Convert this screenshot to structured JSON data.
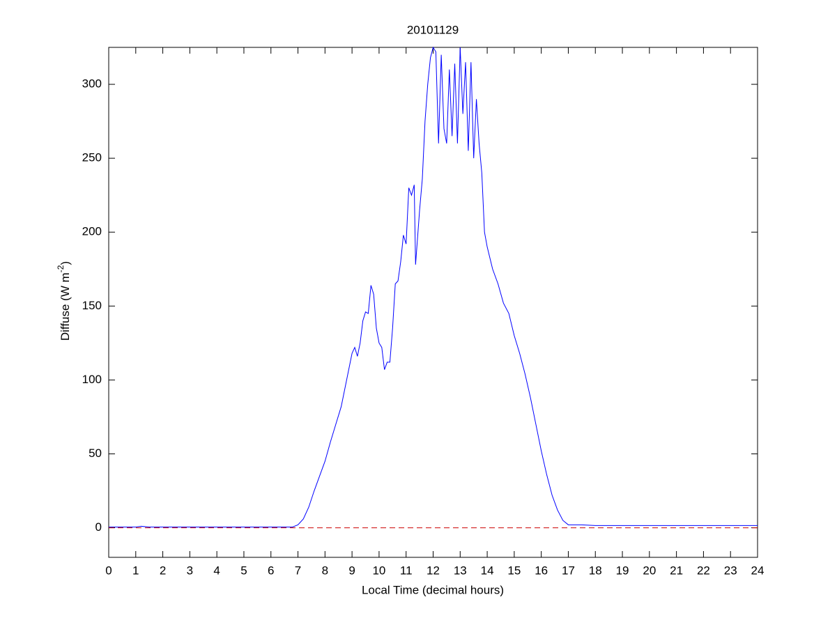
{
  "chart_data": {
    "type": "line",
    "title": "20101129",
    "xlabel": "Local Time (decimal hours)",
    "ylabel_parts": [
      "Diffuse (W m",
      "-2",
      ")"
    ],
    "x": [
      0,
      1,
      1.2,
      1.5,
      2,
      3,
      4,
      5,
      6,
      6.8,
      7,
      7.2,
      7.4,
      7.6,
      7.8,
      8,
      8.2,
      8.4,
      8.6,
      8.8,
      9,
      9.1,
      9.2,
      9.3,
      9.4,
      9.5,
      9.6,
      9.7,
      9.8,
      9.9,
      10,
      10.1,
      10.2,
      10.3,
      10.4,
      10.5,
      10.6,
      10.7,
      10.8,
      10.9,
      11,
      11.1,
      11.2,
      11.3,
      11.35,
      11.5,
      11.6,
      11.7,
      11.8,
      11.9,
      12,
      12.1,
      12.2,
      12.3,
      12.4,
      12.5,
      12.6,
      12.7,
      12.8,
      12.9,
      13,
      13.1,
      13.2,
      13.3,
      13.4,
      13.5,
      13.6,
      13.7,
      13.8,
      13.85,
      13.9,
      14,
      14.2,
      14.4,
      14.6,
      14.8,
      15,
      15.2,
      15.4,
      15.6,
      15.8,
      16,
      16.2,
      16.4,
      16.6,
      16.8,
      17,
      17.5,
      18,
      19,
      20,
      21,
      22,
      23,
      24
    ],
    "series": [
      {
        "color": "#0000ff",
        "values": [
          0.5,
          0.5,
          1,
          0.5,
          0.5,
          0.5,
          0.5,
          0.5,
          0.5,
          0.5,
          2,
          6,
          14,
          25,
          35,
          45,
          58,
          70,
          82,
          100,
          118,
          122,
          116,
          125,
          140,
          146,
          145,
          164,
          158,
          135,
          125,
          122,
          107,
          112,
          112,
          135,
          165,
          167,
          180,
          198,
          192,
          230,
          225,
          232,
          178,
          215,
          236,
          275,
          300,
          318,
          325,
          322,
          260,
          320,
          270,
          260,
          310,
          265,
          314,
          260,
          325,
          280,
          315,
          255,
          315,
          250,
          290,
          260,
          240,
          220,
          200,
          190,
          175,
          165,
          152,
          145,
          130,
          118,
          104,
          88,
          70,
          52,
          36,
          22,
          12,
          5,
          2,
          2,
          1.5,
          1.5,
          1.5,
          1.5,
          1.5,
          1.5,
          1.5
        ]
      }
    ],
    "hline": {
      "value": 0,
      "color": "#cc0000",
      "style": "dashed"
    },
    "xlim": [
      0,
      24
    ],
    "xticks": [
      0,
      1,
      2,
      3,
      4,
      5,
      6,
      7,
      8,
      9,
      10,
      11,
      12,
      13,
      14,
      15,
      16,
      17,
      18,
      19,
      20,
      21,
      22,
      23,
      24
    ],
    "ylim": [
      -20,
      325
    ],
    "yticks": [
      0,
      50,
      100,
      150,
      200,
      250,
      300
    ],
    "grid": false
  }
}
